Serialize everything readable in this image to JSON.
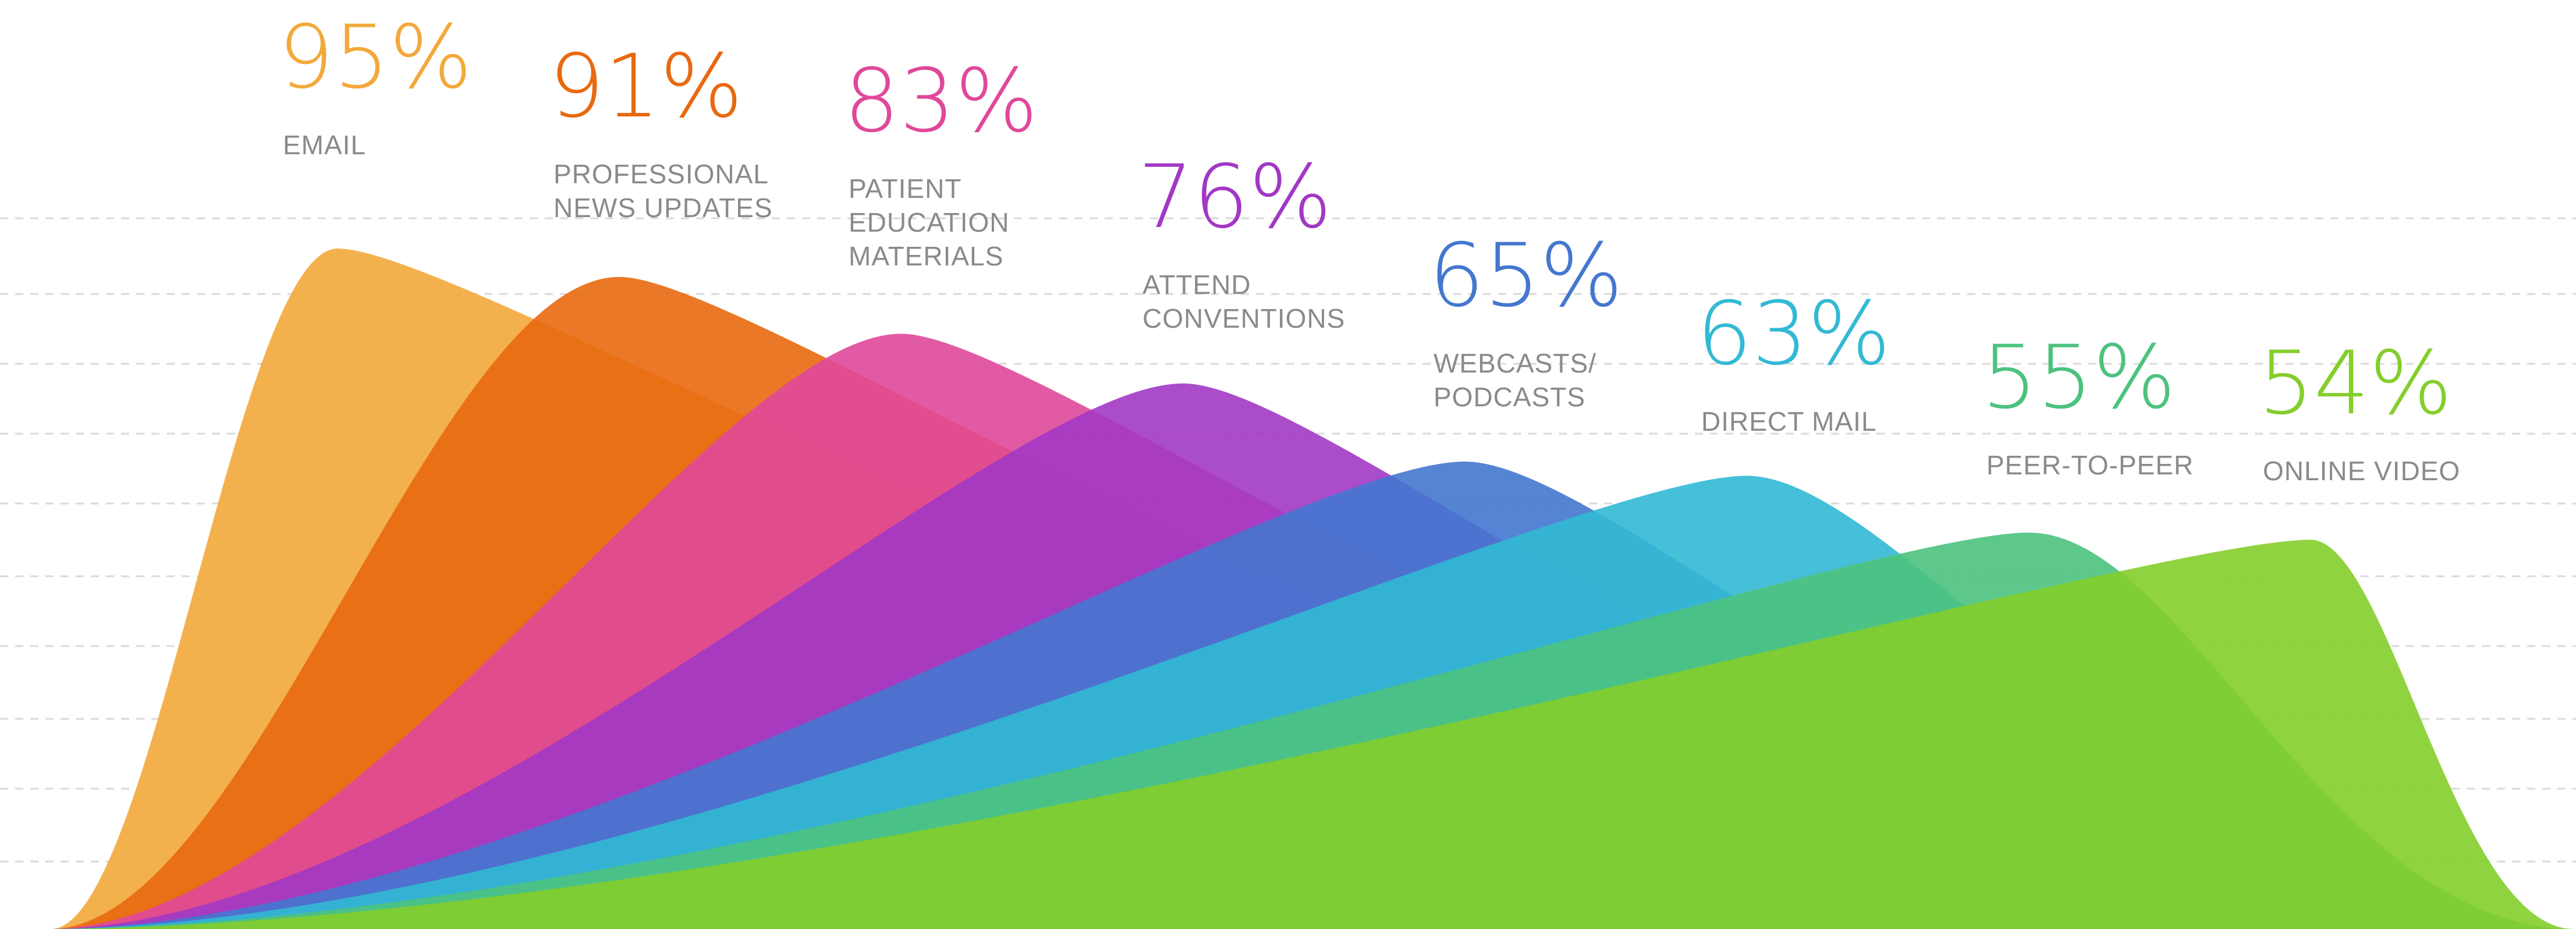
{
  "chart_data": {
    "type": "area",
    "title": "",
    "xlabel": "",
    "ylabel": "",
    "ylim": [
      0,
      100
    ],
    "grid": true,
    "legend": "none",
    "series": [
      {
        "pct": "95%",
        "label_lines": [
          "EMAIL"
        ],
        "value": 95,
        "color": "#F2A93B"
      },
      {
        "pct": "91%",
        "label_lines": [
          "PROFESSIONAL",
          "NEWS UPDATES"
        ],
        "value": 91,
        "color": "#E8690F"
      },
      {
        "pct": "83%",
        "label_lines": [
          "PATIENT",
          "EDUCATION",
          "MATERIALS"
        ],
        "value": 83,
        "color": "#E0489A"
      },
      {
        "pct": "76%",
        "label_lines": [
          "ATTEND",
          "CONVENTIONS"
        ],
        "value": 76,
        "color": "#A238C4"
      },
      {
        "pct": "65%",
        "label_lines": [
          "WEBCASTS/",
          "PODCASTS"
        ],
        "value": 65,
        "color": "#4477CF"
      },
      {
        "pct": "63%",
        "label_lines": [
          "DIRECT MAIL"
        ],
        "value": 63,
        "color": "#32B9D4"
      },
      {
        "pct": "55%",
        "label_lines": [
          "PEER-TO-PEER"
        ],
        "value": 55,
        "color": "#4CC27E"
      },
      {
        "pct": "54%",
        "label_lines": [
          "ONLINE VIDEO"
        ],
        "value": 54,
        "color": "#84CE2B"
      }
    ]
  }
}
